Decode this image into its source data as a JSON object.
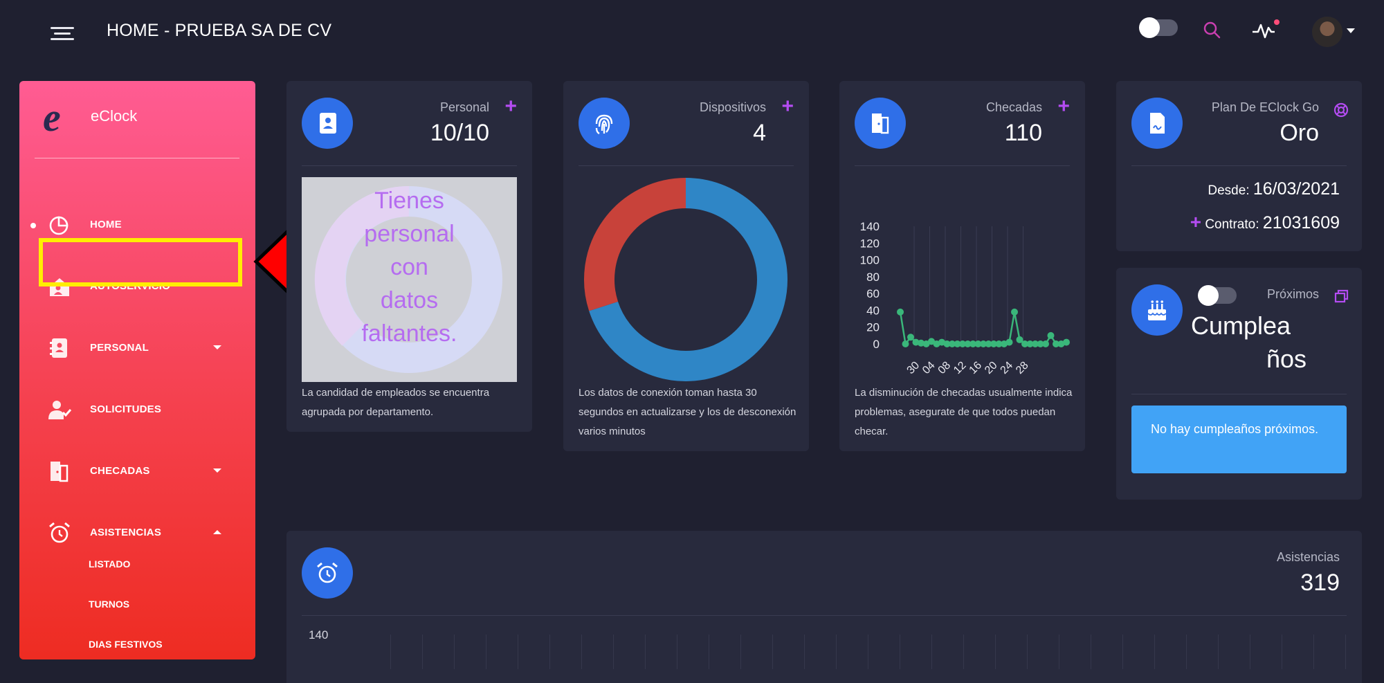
{
  "topbar": {
    "title": "HOME - PRUEBA SA DE CV",
    "menu_icon": "hamburger-menu-icon",
    "search_icon": "search-icon",
    "activity_icon": "pulse-icon",
    "accent_color": "#b44cf2"
  },
  "sidebar": {
    "brand_logo": "e",
    "brand_name": "eClock",
    "items": [
      {
        "label": "HOME",
        "icon": "pie-chart-icon"
      },
      {
        "label": "AUTOSERVICIO",
        "icon": "house-icon"
      },
      {
        "label": "PERSONAL",
        "icon": "address-book-icon"
      },
      {
        "label": "SOLICITUDES",
        "icon": "user-check-icon"
      },
      {
        "label": "CHECADAS",
        "icon": "door-icon"
      },
      {
        "label": "ASISTENCIAS",
        "icon": "alarm-clock-icon"
      }
    ],
    "subitems": [
      "LISTADO",
      "TURNOS",
      "DIAS FESTIVOS"
    ]
  },
  "cards": {
    "personal": {
      "label": "Personal",
      "value": "10/10",
      "missing": [
        "Tienes",
        "personal",
        "con",
        "datos",
        "faltantes."
      ],
      "note": "La candidad de empleados se encuentra agrupada por departamento."
    },
    "dispositivos": {
      "label": "Dispositivos",
      "value": "4",
      "note": "Los datos de conexión toman hasta 30 segundos en actualizarse y los de desconexión varios minutos"
    },
    "checadas": {
      "label": "Checadas",
      "value": "110",
      "note": "La disminución de checadas usualmente indica problemas, asegurate de que todos puedan checar."
    },
    "plan": {
      "label": "Plan De EClock Go",
      "value": "Oro",
      "desde_label": "Desde:",
      "desde_value": "16/03/2021",
      "contrato_label": "Contrato:",
      "contrato_value": "21031609"
    },
    "cumple": {
      "label": "Próximos",
      "title_1": "Cumplea",
      "title_2": "ños",
      "empty": "No hay cumpleaños próximos."
    },
    "asistencias": {
      "label": "Asistencias",
      "value": "319",
      "axis_top": "140"
    }
  },
  "chart_data": [
    {
      "type": "pie",
      "title": "",
      "series": [
        {
          "values": [
            70,
            30
          ],
          "colors": [
            "#2f86c6",
            "#c8423a"
          ]
        }
      ],
      "donut": true
    },
    {
      "type": "line",
      "title": "",
      "x_ticks": [
        "30",
        "04",
        "08",
        "12",
        "16",
        "20",
        "24",
        "28"
      ],
      "y_ticks": [
        0,
        20,
        40,
        60,
        80,
        100,
        120,
        140
      ],
      "ylim": [
        0,
        140
      ],
      "color": "#3ab77a",
      "y": [
        38,
        0,
        8,
        2,
        1,
        0,
        3,
        0,
        2,
        0,
        0,
        0,
        0,
        0,
        0,
        0,
        0,
        0,
        0,
        0,
        0,
        2,
        38,
        5,
        0,
        0,
        0,
        0,
        0,
        10,
        0,
        0,
        2
      ]
    }
  ]
}
